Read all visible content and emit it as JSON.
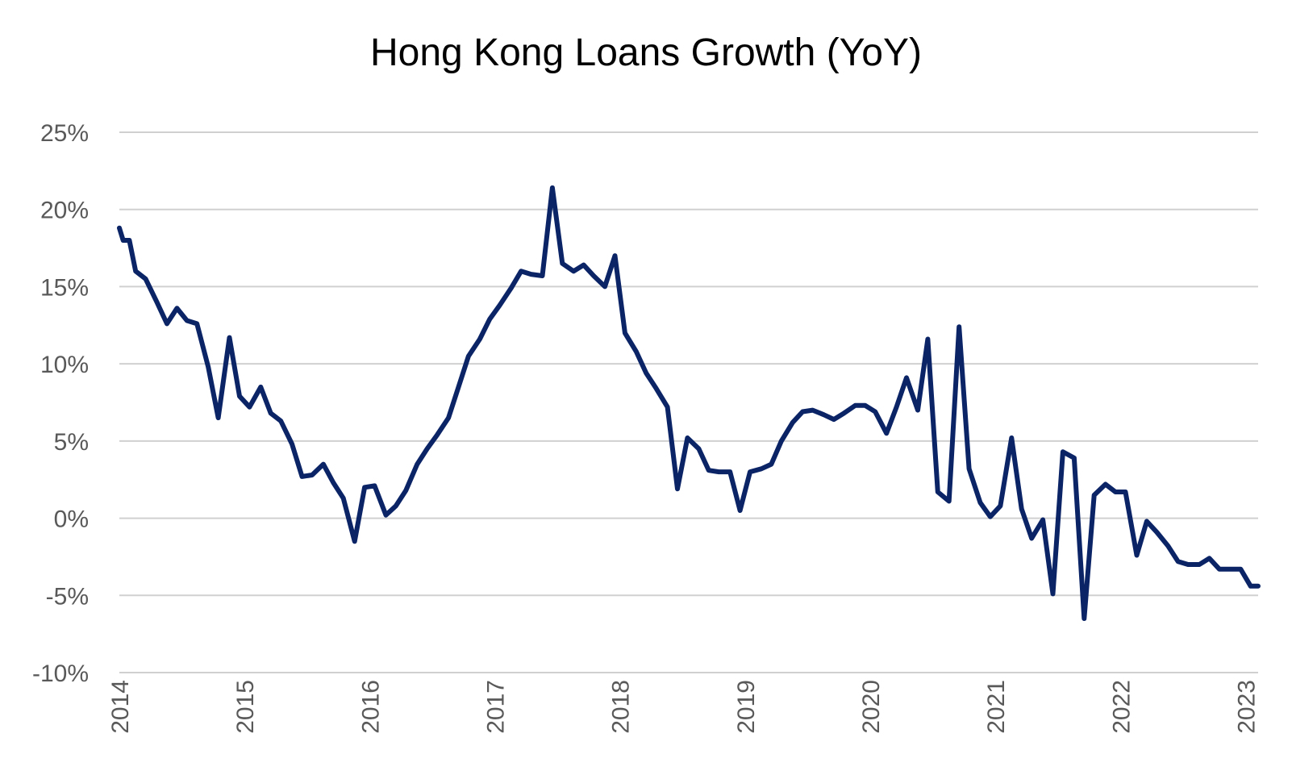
{
  "chart_data": {
    "type": "line",
    "title": "Hong Kong Loans Growth (YoY)",
    "xlabel": "",
    "ylabel": "",
    "x_tick_labels": [
      "2014",
      "2015",
      "2016",
      "2017",
      "2018",
      "2019",
      "2020",
      "2021",
      "2022",
      "2023"
    ],
    "x_range": [
      2014.0,
      2023.1
    ],
    "ylim": [
      -10,
      25
    ],
    "y_ticks": [
      25,
      20,
      15,
      10,
      5,
      0,
      -5,
      -10
    ],
    "y_tick_labels": [
      "25%",
      "20%",
      "15%",
      "10%",
      "5%",
      "0%",
      "-5%",
      "-10%"
    ],
    "grid": true,
    "legend": "none",
    "colors": {
      "line": "#0b2466",
      "grid": "#d0d0d0",
      "tick_text": "#595959"
    },
    "series": [
      {
        "x": [
          2014.0,
          2014.03,
          2014.08,
          2014.13,
          2014.21,
          2014.3,
          2014.38,
          2014.46,
          2014.54,
          2014.62,
          2014.71,
          2014.79,
          2014.88,
          2014.96,
          2015.04,
          2015.13,
          2015.21,
          2015.29,
          2015.38,
          2015.46,
          2015.54,
          2015.63,
          2015.71,
          2015.79,
          2015.88,
          2015.96,
          2016.04,
          2016.13,
          2016.21,
          2016.29,
          2016.38,
          2016.46,
          2016.54,
          2016.63,
          2016.71,
          2016.79,
          2016.88,
          2016.96,
          2017.04,
          2017.13,
          2017.21,
          2017.29,
          2017.38,
          2017.46,
          2017.54,
          2017.63,
          2017.71,
          2017.79,
          2017.88,
          2017.96,
          2018.04,
          2018.13,
          2018.21,
          2018.29,
          2018.38,
          2018.46,
          2018.54,
          2018.63,
          2018.71,
          2018.79,
          2018.88,
          2018.96,
          2019.04,
          2019.13,
          2019.21,
          2019.29,
          2019.38,
          2019.46,
          2019.54,
          2019.63,
          2019.71,
          2019.79,
          2019.88,
          2019.96,
          2020.04,
          2020.13,
          2020.21,
          2020.29,
          2020.38,
          2020.46,
          2020.54,
          2020.63,
          2020.71,
          2020.79,
          2020.88,
          2020.96,
          2021.04,
          2021.13,
          2021.21,
          2021.29,
          2021.38,
          2021.46,
          2021.54,
          2021.63,
          2021.71,
          2021.79,
          2021.88,
          2021.96,
          2022.04,
          2022.13,
          2022.21,
          2022.29,
          2022.38,
          2022.46,
          2022.54,
          2022.63,
          2022.71,
          2022.79,
          2022.88,
          2022.96,
          2023.04,
          2023.1
        ],
        "y": [
          18.8,
          18.0,
          18.0,
          16.0,
          15.5,
          14.0,
          12.6,
          13.6,
          12.8,
          12.6,
          9.8,
          6.5,
          11.7,
          7.9,
          7.2,
          8.5,
          6.8,
          6.3,
          4.8,
          2.7,
          2.8,
          3.5,
          2.3,
          1.3,
          -1.5,
          2.0,
          2.1,
          0.2,
          0.8,
          1.8,
          3.5,
          4.5,
          5.4,
          6.5,
          8.5,
          10.5,
          11.6,
          12.9,
          13.8,
          14.9,
          16.0,
          15.8,
          15.7,
          21.4,
          16.5,
          16.0,
          16.4,
          15.7,
          15.0,
          17.0,
          12.0,
          10.8,
          9.4,
          8.4,
          7.2,
          1.9,
          5.2,
          4.5,
          3.1,
          3.0,
          3.0,
          0.5,
          3.0,
          3.2,
          3.5,
          5.0,
          6.2,
          6.9,
          7.0,
          6.7,
          6.4,
          6.8,
          7.3,
          7.3,
          6.9,
          5.5,
          7.2,
          9.1,
          7.0,
          11.6,
          1.7,
          1.1,
          12.4,
          3.2,
          1.0,
          0.1,
          0.8,
          5.2,
          0.6,
          -1.3,
          -0.1,
          -4.9,
          4.3,
          3.9,
          -6.5,
          1.5,
          2.2,
          1.7,
          1.7,
          -2.4,
          -0.2,
          -0.9,
          -1.8,
          -2.8,
          -3.0,
          -3.0,
          -2.6,
          -3.3,
          -3.3,
          -3.3,
          -4.4,
          -4.4
        ]
      }
    ]
  }
}
